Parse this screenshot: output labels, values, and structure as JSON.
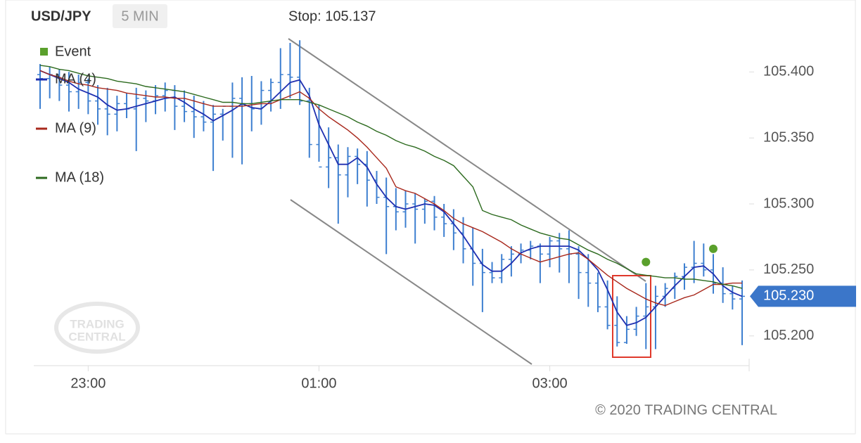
{
  "chart_data": {
    "type": "ohlc",
    "title": "USD/JPY",
    "interval": "5 MIN",
    "annotation": "Stop: 105.137",
    "copyright": "© 2020 TRADING CENTRAL",
    "watermark": [
      "TRADING",
      "CENTRAL"
    ],
    "last_price": {
      "value": 105.23,
      "label": "105.230"
    },
    "last_price_color": "#3b76c9",
    "x": [
      "22:35",
      "22:40",
      "22:45",
      "22:50",
      "22:55",
      "23:00",
      "23:05",
      "23:10",
      "23:15",
      "23:20",
      "23:25",
      "23:30",
      "23:35",
      "23:40",
      "23:45",
      "23:50",
      "23:55",
      "00:00",
      "00:05",
      "00:10",
      "00:15",
      "00:20",
      "00:25",
      "00:30",
      "00:35",
      "00:40",
      "00:45",
      "00:50",
      "00:55",
      "01:00",
      "01:05",
      "01:10",
      "01:15",
      "01:20",
      "01:25",
      "01:30",
      "01:35",
      "01:40",
      "01:45",
      "01:50",
      "01:55",
      "02:00",
      "02:05",
      "02:10",
      "02:15",
      "02:20",
      "02:25",
      "02:30",
      "02:35",
      "02:40",
      "02:45",
      "02:50",
      "02:55",
      "03:00",
      "03:05",
      "03:10",
      "03:15",
      "03:20",
      "03:25",
      "03:30",
      "03:35",
      "03:40",
      "03:45",
      "03:50",
      "03:55",
      "04:00",
      "04:05",
      "04:10",
      "04:15",
      "04:20",
      "04:25",
      "04:30",
      "04:35",
      "04:40"
    ],
    "ohlc": {
      "color": "#3d7fd0",
      "high": [
        105.406,
        105.404,
        105.402,
        105.4,
        105.398,
        105.395,
        105.39,
        105.388,
        105.382,
        105.384,
        105.388,
        105.386,
        105.39,
        105.392,
        105.39,
        105.386,
        105.382,
        105.378,
        105.375,
        105.372,
        105.392,
        105.396,
        105.397,
        105.393,
        105.395,
        105.418,
        105.422,
        105.424,
        105.388,
        105.375,
        105.358,
        105.345,
        105.343,
        105.342,
        105.34,
        105.325,
        105.32,
        105.312,
        105.31,
        105.308,
        105.304,
        105.306,
        105.3,
        105.296,
        105.29,
        105.282,
        105.266,
        105.256,
        105.262,
        105.268,
        105.27,
        105.272,
        105.27,
        105.275,
        105.278,
        105.28,
        105.268,
        105.262,
        105.248,
        105.242,
        105.23,
        105.215,
        105.222,
        105.24,
        105.238,
        105.24,
        105.248,
        105.255,
        105.272,
        105.27,
        105.262,
        105.252,
        105.238,
        105.242
      ],
      "low": [
        105.372,
        105.38,
        105.378,
        105.37,
        105.372,
        105.368,
        105.36,
        105.352,
        105.355,
        105.365,
        105.34,
        105.362,
        105.368,
        105.37,
        105.356,
        105.362,
        105.35,
        105.355,
        105.325,
        105.348,
        105.335,
        105.33,
        105.355,
        105.36,
        105.37,
        105.372,
        105.38,
        105.375,
        105.335,
        105.332,
        105.312,
        105.285,
        105.305,
        105.315,
        105.298,
        105.3,
        105.262,
        105.28,
        105.282,
        105.27,
        105.285,
        105.28,
        105.275,
        105.265,
        105.255,
        105.238,
        105.218,
        105.24,
        105.24,
        105.245,
        105.255,
        105.258,
        105.24,
        105.252,
        105.248,
        105.24,
        105.228,
        105.222,
        105.218,
        105.205,
        105.192,
        105.194,
        105.2,
        105.19,
        105.19,
        105.222,
        105.228,
        105.235,
        105.24,
        105.245,
        105.232,
        105.225,
        105.22,
        105.193
      ],
      "open": [
        105.398,
        105.395,
        105.398,
        105.39,
        105.385,
        105.392,
        105.378,
        105.372,
        105.368,
        105.376,
        105.372,
        105.38,
        105.378,
        105.382,
        105.386,
        105.374,
        105.37,
        105.366,
        105.362,
        105.368,
        105.374,
        105.38,
        105.376,
        105.372,
        105.386,
        105.392,
        105.398,
        105.396,
        105.378,
        105.345,
        105.328,
        105.335,
        105.322,
        105.336,
        105.33,
        105.318,
        105.305,
        105.298,
        105.294,
        105.3,
        105.296,
        105.302,
        105.29,
        105.285,
        105.278,
        105.266,
        105.255,
        105.248,
        105.244,
        105.258,
        105.262,
        105.265,
        105.268,
        105.262,
        105.272,
        105.266,
        105.262,
        105.248,
        105.24,
        105.222,
        105.208,
        105.195,
        105.205,
        105.215,
        105.222,
        105.23,
        105.236,
        105.245,
        105.252,
        105.255,
        105.25,
        105.24,
        105.232,
        105.228
      ],
      "close": [
        105.395,
        105.398,
        105.39,
        105.385,
        105.392,
        105.378,
        105.372,
        105.368,
        105.376,
        105.372,
        105.38,
        105.378,
        105.382,
        105.386,
        105.374,
        105.37,
        105.366,
        105.362,
        105.368,
        105.374,
        105.38,
        105.376,
        105.372,
        105.386,
        105.392,
        105.398,
        105.396,
        105.378,
        105.345,
        105.328,
        105.335,
        105.322,
        105.336,
        105.33,
        105.318,
        105.305,
        105.298,
        105.294,
        105.3,
        105.296,
        105.302,
        105.29,
        105.285,
        105.278,
        105.266,
        105.255,
        105.248,
        105.244,
        105.258,
        105.262,
        105.265,
        105.268,
        105.262,
        105.272,
        105.266,
        105.262,
        105.248,
        105.24,
        105.222,
        105.208,
        105.195,
        105.205,
        105.215,
        105.222,
        105.23,
        105.236,
        105.245,
        105.252,
        105.255,
        105.25,
        105.24,
        105.232,
        105.228,
        105.23
      ]
    },
    "series": [
      {
        "name": "MA (4)",
        "color": "#1f2fb0",
        "values": [
          105.401,
          105.398,
          105.395,
          105.392,
          105.387,
          105.384,
          105.381,
          105.375,
          105.371,
          105.372,
          105.374,
          105.376,
          105.378,
          105.38,
          105.381,
          105.377,
          105.372,
          105.368,
          105.363,
          105.367,
          105.371,
          105.376,
          105.373,
          105.372,
          105.378,
          105.385,
          105.392,
          105.394,
          105.382,
          105.36,
          105.345,
          105.33,
          105.33,
          105.335,
          105.328,
          105.315,
          105.305,
          105.298,
          105.296,
          105.298,
          105.3,
          105.299,
          105.294,
          105.285,
          105.276,
          105.265,
          105.254,
          105.249,
          105.249,
          105.255,
          105.263,
          105.266,
          105.268,
          105.268,
          105.268,
          105.268,
          105.265,
          105.258,
          105.25,
          105.235,
          105.218,
          105.208,
          105.21,
          105.214,
          105.222,
          105.23,
          105.238,
          105.245,
          105.252,
          105.253,
          105.247,
          105.238,
          105.233,
          105.23
        ]
      },
      {
        "name": "MA (9)",
        "color": "#a8281c",
        "values": [
          105.401,
          105.398,
          105.396,
          105.393,
          105.391,
          105.39,
          105.388,
          105.387,
          105.386,
          105.384,
          105.383,
          105.382,
          105.381,
          105.381,
          105.38,
          105.38,
          105.378,
          105.376,
          105.374,
          105.374,
          105.374,
          105.374,
          105.375,
          105.376,
          105.376,
          105.379,
          105.382,
          105.385,
          105.38,
          105.372,
          105.366,
          105.361,
          105.356,
          105.35,
          105.343,
          105.335,
          105.327,
          105.313,
          105.31,
          105.308,
          105.304,
          105.3,
          105.295,
          105.289,
          105.285,
          105.282,
          105.279,
          105.275,
          105.271,
          105.266,
          105.262,
          105.259,
          105.256,
          105.258,
          105.26,
          105.262,
          105.263,
          105.258,
          105.252,
          105.246,
          105.241,
          105.236,
          105.232,
          105.228,
          105.225,
          105.223,
          105.226,
          105.229,
          105.231,
          105.235,
          105.239,
          105.239,
          105.24,
          105.24
        ]
      },
      {
        "name": "MA (18)",
        "color": "#2c6a1e",
        "values": [
          105.405,
          105.404,
          105.402,
          105.401,
          105.399,
          105.397,
          105.396,
          105.395,
          105.393,
          105.392,
          105.391,
          105.389,
          105.388,
          105.387,
          105.386,
          105.385,
          105.383,
          105.381,
          105.379,
          105.377,
          105.377,
          105.376,
          105.376,
          105.377,
          105.378,
          105.379,
          105.379,
          105.379,
          105.377,
          105.375,
          105.372,
          105.369,
          105.366,
          105.362,
          105.359,
          105.355,
          105.352,
          105.348,
          105.345,
          105.343,
          105.34,
          105.336,
          105.333,
          105.329,
          105.321,
          105.313,
          105.295,
          105.292,
          105.29,
          105.288,
          105.284,
          105.281,
          105.278,
          105.276,
          105.274,
          105.273,
          105.269,
          105.265,
          105.262,
          105.258,
          105.255,
          105.251,
          105.247,
          105.246,
          105.245,
          105.244,
          105.244,
          105.243,
          105.243,
          105.242,
          105.241,
          105.239,
          105.238,
          105.236
        ]
      }
    ],
    "events": {
      "name": "Event",
      "color": "#5aa02c",
      "x": [
        "03:50",
        "04:25"
      ],
      "values": [
        105.256,
        105.266
      ]
    },
    "ylim": [
      105.178,
      105.43
    ],
    "yticks": [
      {
        "value": 105.2,
        "label": "105.200"
      },
      {
        "value": 105.25,
        "label": "105.250"
      },
      {
        "value": 105.3,
        "label": "105.300"
      },
      {
        "value": 105.35,
        "label": "105.350"
      },
      {
        "value": 105.4,
        "label": "105.400"
      }
    ],
    "xticks": [
      "23:00",
      "01:00",
      "03:00"
    ]
  }
}
